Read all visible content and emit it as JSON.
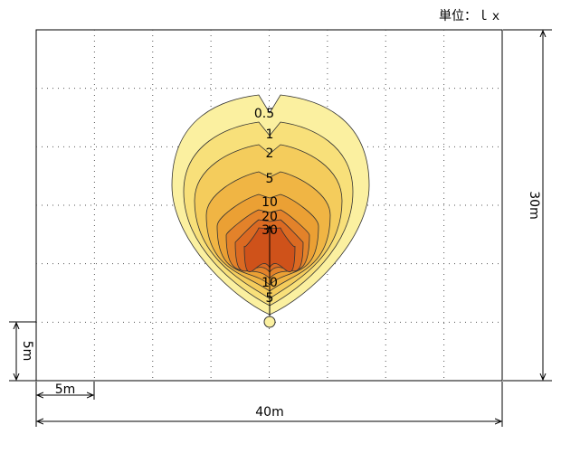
{
  "unit_label": "単位：ｌｘ",
  "contour_labels": [
    "0.5",
    "1",
    "2",
    "5",
    "10",
    "20",
    "30",
    "10",
    "5"
  ],
  "dimensions": {
    "bottom_small": "5m",
    "bottom_total": "40m",
    "right_total": "30m",
    "left_small": "5m"
  }
}
